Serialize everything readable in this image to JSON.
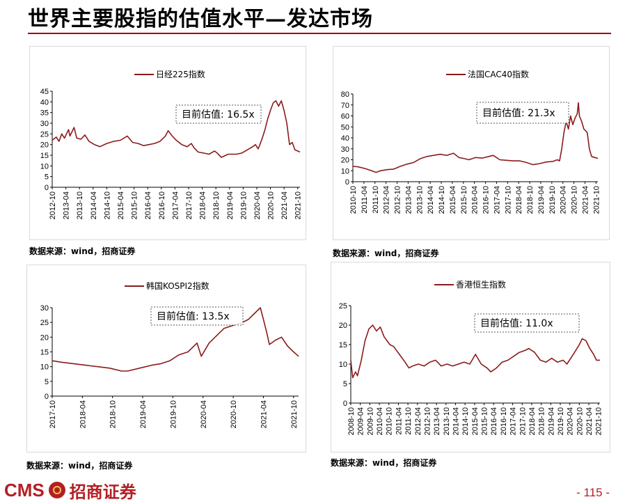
{
  "page": {
    "title": "世界主要股指的估值水平—发达市场",
    "page_number": "- 115 -",
    "logo": {
      "brand": "CMS",
      "name": "招商证券"
    },
    "accent_color": "#a00000",
    "line_color": "#8b1a1a"
  },
  "chart_data": [
    {
      "type": "line",
      "series": [
        {
          "name": "日经225指数"
        }
      ],
      "annotation": "目前估值:  16.5x",
      "source": "数据来源：wind，招商证券",
      "ylim": [
        0,
        45
      ],
      "yticks": [
        0,
        5,
        10,
        15,
        20,
        25,
        30,
        35,
        40,
        45
      ],
      "xlim": [
        2012.75,
        2021.833
      ],
      "xticks": [
        "2012-10",
        "2013-04",
        "2013-10",
        "2014-04",
        "2014-10",
        "2015-04",
        "2015-10",
        "2016-04",
        "2016-10",
        "2017-04",
        "2017-10",
        "2018-04",
        "2018-10",
        "2019-04",
        "2019-10",
        "2020-04",
        "2020-10",
        "2021-04",
        "2021-10"
      ],
      "points": [
        [
          2012.75,
          22
        ],
        [
          2012.9,
          23.5
        ],
        [
          2013.0,
          21.5
        ],
        [
          2013.1,
          25
        ],
        [
          2013.2,
          23
        ],
        [
          2013.35,
          27
        ],
        [
          2013.4,
          24
        ],
        [
          2013.55,
          28
        ],
        [
          2013.65,
          23
        ],
        [
          2013.8,
          22.5
        ],
        [
          2013.95,
          24.5
        ],
        [
          2014.1,
          21.5
        ],
        [
          2014.3,
          20
        ],
        [
          2014.5,
          19
        ],
        [
          2014.75,
          20.5
        ],
        [
          2015.0,
          21.5
        ],
        [
          2015.25,
          22
        ],
        [
          2015.5,
          24
        ],
        [
          2015.7,
          21
        ],
        [
          2015.9,
          20.5
        ],
        [
          2016.1,
          19.5
        ],
        [
          2016.3,
          20
        ],
        [
          2016.5,
          20.5
        ],
        [
          2016.7,
          21.5
        ],
        [
          2016.9,
          24
        ],
        [
          2017.0,
          26.5
        ],
        [
          2017.15,
          24
        ],
        [
          2017.3,
          22
        ],
        [
          2017.5,
          20
        ],
        [
          2017.7,
          19
        ],
        [
          2017.85,
          20.5
        ],
        [
          2017.95,
          18.5
        ],
        [
          2018.1,
          16.5
        ],
        [
          2018.3,
          16
        ],
        [
          2018.5,
          15.5
        ],
        [
          2018.7,
          17
        ],
        [
          2018.8,
          16
        ],
        [
          2018.95,
          14
        ],
        [
          2019.2,
          15.5
        ],
        [
          2019.5,
          15.5
        ],
        [
          2019.7,
          16
        ],
        [
          2019.9,
          17.5
        ],
        [
          2020.1,
          19
        ],
        [
          2020.2,
          20
        ],
        [
          2020.3,
          18
        ],
        [
          2020.35,
          19.5
        ],
        [
          2020.45,
          23
        ],
        [
          2020.55,
          27
        ],
        [
          2020.65,
          32
        ],
        [
          2020.75,
          36
        ],
        [
          2020.85,
          39.5
        ],
        [
          2020.95,
          40.5
        ],
        [
          2021.05,
          38
        ],
        [
          2021.15,
          40.5
        ],
        [
          2021.25,
          36
        ],
        [
          2021.35,
          30
        ],
        [
          2021.45,
          20
        ],
        [
          2021.55,
          21
        ],
        [
          2021.65,
          17.5
        ],
        [
          2021.75,
          17
        ],
        [
          2021.833,
          16.5
        ]
      ]
    },
    {
      "type": "line",
      "series": [
        {
          "name": "法国CAC40指数"
        }
      ],
      "annotation": "目前估值:  21.3x",
      "source": "数据来源：wind，招商证券",
      "ylim": [
        0,
        80
      ],
      "yticks": [
        0,
        10,
        20,
        30,
        40,
        50,
        60,
        70,
        80
      ],
      "xlim": [
        2010.75,
        2021.833
      ],
      "xticks": [
        "2010-10",
        "2011-04",
        "2011-10",
        "2012-04",
        "2012-10",
        "2013-04",
        "2013-10",
        "2014-04",
        "2014-10",
        "2015-04",
        "2015-10",
        "2016-04",
        "2016-10",
        "2017-04",
        "2017-10",
        "2018-04",
        "2018-10",
        "2019-04",
        "2019-10",
        "2020-04",
        "2020-10",
        "2021-04",
        "2021-10"
      ],
      "points": [
        [
          2010.75,
          14
        ],
        [
          2011.0,
          13.5
        ],
        [
          2011.3,
          12
        ],
        [
          2011.6,
          10
        ],
        [
          2011.8,
          8.5
        ],
        [
          2012.0,
          10
        ],
        [
          2012.3,
          11
        ],
        [
          2012.6,
          11.5
        ],
        [
          2012.9,
          14
        ],
        [
          2013.2,
          16
        ],
        [
          2013.5,
          17.5
        ],
        [
          2013.8,
          21
        ],
        [
          2014.1,
          23
        ],
        [
          2014.4,
          24
        ],
        [
          2014.7,
          25
        ],
        [
          2015.0,
          24
        ],
        [
          2015.3,
          26
        ],
        [
          2015.55,
          22
        ],
        [
          2015.8,
          21
        ],
        [
          2016.0,
          20
        ],
        [
          2016.3,
          22
        ],
        [
          2016.6,
          21.5
        ],
        [
          2016.9,
          23
        ],
        [
          2017.1,
          24
        ],
        [
          2017.4,
          20
        ],
        [
          2017.7,
          19.5
        ],
        [
          2018.0,
          19
        ],
        [
          2018.3,
          19
        ],
        [
          2018.6,
          17.5
        ],
        [
          2018.9,
          15.5
        ],
        [
          2019.2,
          16.5
        ],
        [
          2019.5,
          18
        ],
        [
          2019.8,
          18.5
        ],
        [
          2020.0,
          20
        ],
        [
          2020.1,
          19
        ],
        [
          2020.2,
          30
        ],
        [
          2020.3,
          45
        ],
        [
          2020.4,
          55
        ],
        [
          2020.5,
          48
        ],
        [
          2020.6,
          60
        ],
        [
          2020.7,
          52
        ],
        [
          2020.8,
          58
        ],
        [
          2020.9,
          62
        ],
        [
          2020.95,
          72
        ],
        [
          2021.0,
          60
        ],
        [
          2021.1,
          55
        ],
        [
          2021.2,
          48
        ],
        [
          2021.35,
          45
        ],
        [
          2021.45,
          30
        ],
        [
          2021.55,
          23
        ],
        [
          2021.7,
          22
        ],
        [
          2021.833,
          21.3
        ]
      ]
    },
    {
      "type": "line",
      "series": [
        {
          "name": "韩国KOSPI2指数"
        }
      ],
      "annotation": "目前估值:  13.5x",
      "source": "数据来源：wind，招商证券",
      "ylim": [
        0,
        30
      ],
      "yticks": [
        0,
        5,
        10,
        15,
        20,
        25,
        30
      ],
      "xlim": [
        2017.75,
        2021.833
      ],
      "xticks": [
        "2017-10",
        "2018-04",
        "2018-10",
        "2019-04",
        "2019-10",
        "2020-04",
        "2020-10",
        "2021-04",
        "2021-10"
      ],
      "points": [
        [
          2017.75,
          12
        ],
        [
          2017.9,
          11.5
        ],
        [
          2018.1,
          11
        ],
        [
          2018.3,
          10.5
        ],
        [
          2018.5,
          10
        ],
        [
          2018.7,
          9.5
        ],
        [
          2018.9,
          8.5
        ],
        [
          2019.0,
          8.5
        ],
        [
          2019.2,
          9.5
        ],
        [
          2019.4,
          10.5
        ],
        [
          2019.55,
          11
        ],
        [
          2019.7,
          12
        ],
        [
          2019.85,
          14
        ],
        [
          2020.0,
          15
        ],
        [
          2020.05,
          16
        ],
        [
          2020.15,
          18
        ],
        [
          2020.22,
          13.5
        ],
        [
          2020.35,
          18
        ],
        [
          2020.5,
          21
        ],
        [
          2020.6,
          23
        ],
        [
          2020.75,
          24
        ],
        [
          2020.9,
          25
        ],
        [
          2021.0,
          26
        ],
        [
          2021.1,
          28
        ],
        [
          2021.2,
          30
        ],
        [
          2021.25,
          26
        ],
        [
          2021.3,
          22
        ],
        [
          2021.35,
          17.5
        ],
        [
          2021.45,
          19
        ],
        [
          2021.55,
          20
        ],
        [
          2021.65,
          17
        ],
        [
          2021.75,
          15
        ],
        [
          2021.833,
          13.5
        ]
      ]
    },
    {
      "type": "line",
      "series": [
        {
          "name": "香港恒生指数"
        }
      ],
      "annotation": "目前估值:  11.0x",
      "source": "数据来源：wind，招商证券",
      "ylim": [
        0,
        25
      ],
      "yticks": [
        0,
        5,
        10,
        15,
        20,
        25
      ],
      "xlim": [
        2008.75,
        2021.833
      ],
      "xticks": [
        "2008-10",
        "2009-04",
        "2009-10",
        "2010-04",
        "2010-10",
        "2011-04",
        "2011-10",
        "2012-04",
        "2012-10",
        "2013-04",
        "2013-10",
        "2014-04",
        "2014-10",
        "2015-04",
        "2015-10",
        "2016-04",
        "2016-10",
        "2017-04",
        "2017-10",
        "2018-04",
        "2018-10",
        "2019-04",
        "2019-10",
        "2020-04",
        "2020-10",
        "2021-04",
        "2021-10"
      ],
      "points": [
        [
          2008.75,
          11
        ],
        [
          2008.85,
          6.5
        ],
        [
          2009.0,
          8
        ],
        [
          2009.1,
          7
        ],
        [
          2009.3,
          11
        ],
        [
          2009.5,
          16
        ],
        [
          2009.7,
          19
        ],
        [
          2009.9,
          20
        ],
        [
          2010.1,
          18.5
        ],
        [
          2010.3,
          19.5
        ],
        [
          2010.5,
          17
        ],
        [
          2010.8,
          15
        ],
        [
          2011.0,
          14.5
        ],
        [
          2011.3,
          12.5
        ],
        [
          2011.6,
          10.5
        ],
        [
          2011.8,
          9
        ],
        [
          2012.0,
          9.5
        ],
        [
          2012.3,
          10
        ],
        [
          2012.6,
          9.5
        ],
        [
          2012.9,
          10.5
        ],
        [
          2013.2,
          11
        ],
        [
          2013.5,
          9.5
        ],
        [
          2013.8,
          10
        ],
        [
          2014.1,
          9.5
        ],
        [
          2014.4,
          10
        ],
        [
          2014.7,
          10.5
        ],
        [
          2015.0,
          10
        ],
        [
          2015.3,
          12.5
        ],
        [
          2015.6,
          10
        ],
        [
          2015.9,
          9
        ],
        [
          2016.1,
          8
        ],
        [
          2016.4,
          9
        ],
        [
          2016.7,
          10.5
        ],
        [
          2017.0,
          11
        ],
        [
          2017.3,
          12
        ],
        [
          2017.6,
          13
        ],
        [
          2017.9,
          13.5
        ],
        [
          2018.1,
          14
        ],
        [
          2018.4,
          13
        ],
        [
          2018.7,
          11
        ],
        [
          2019.0,
          10.5
        ],
        [
          2019.3,
          11.5
        ],
        [
          2019.6,
          10.5
        ],
        [
          2019.9,
          11
        ],
        [
          2020.1,
          10
        ],
        [
          2020.3,
          11.5
        ],
        [
          2020.5,
          13
        ],
        [
          2020.75,
          15
        ],
        [
          2020.9,
          16.5
        ],
        [
          2021.1,
          16
        ],
        [
          2021.3,
          14
        ],
        [
          2021.5,
          12.5
        ],
        [
          2021.65,
          11
        ],
        [
          2021.833,
          11
        ]
      ]
    }
  ]
}
